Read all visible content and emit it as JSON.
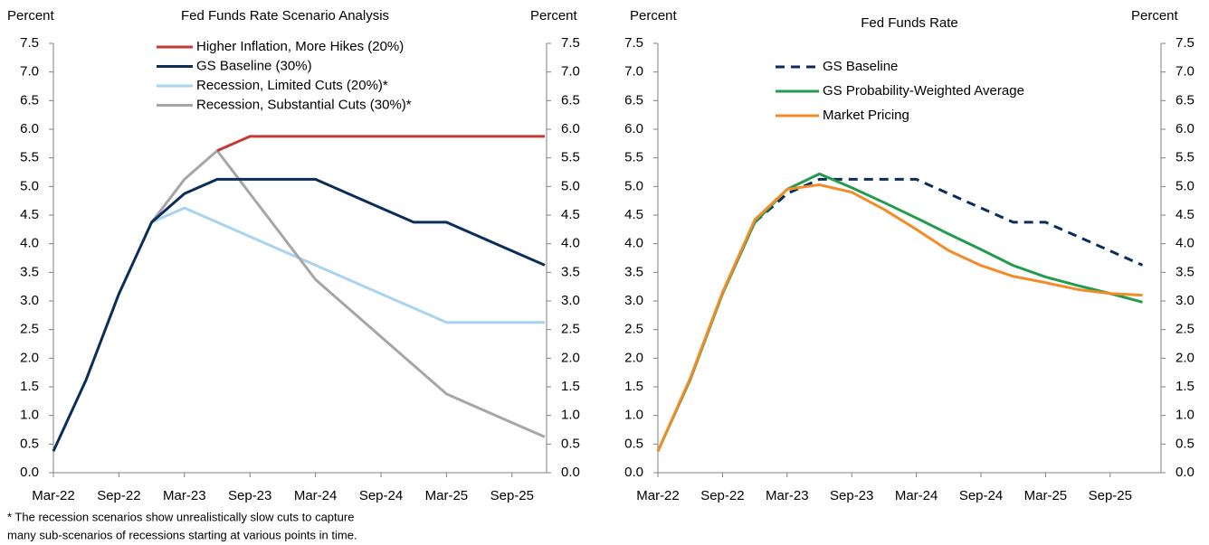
{
  "chart_data": [
    {
      "type": "line",
      "title": "Fed Funds Rate Scenario Analysis",
      "ylabel": "Percent",
      "y2label": "Percent",
      "categories": [
        "Mar-22",
        null,
        "Sep-22",
        null,
        "Mar-23",
        null,
        "Sep-23",
        null,
        "Mar-24",
        null,
        "Sep-24",
        null,
        "Mar-25",
        null,
        "Sep-25",
        null
      ],
      "series": [
        {
          "name": "Recession, Limited Cuts (20%)*",
          "color": "#a9d3ef",
          "values": [
            null,
            null,
            null,
            4.375,
            4.625,
            4.375,
            4.125,
            3.875,
            3.625,
            3.375,
            3.125,
            2.875,
            2.625,
            2.625,
            2.625,
            2.625
          ]
        },
        {
          "name": "Recession, Substantial Cuts (30%)*",
          "color": "#a6a6a6",
          "values": [
            null,
            null,
            null,
            4.375,
            5.125,
            5.625,
            4.875,
            4.125,
            3.375,
            2.875,
            2.375,
            1.875,
            1.375,
            1.125,
            0.875,
            0.625
          ]
        },
        {
          "name": "Higher Inflation, More Hikes (20%)",
          "color": "#c43b35",
          "values": [
            null,
            null,
            null,
            null,
            null,
            5.625,
            5.875,
            5.875,
            5.875,
            5.875,
            5.875,
            5.875,
            5.875,
            5.875,
            5.875,
            5.875
          ]
        },
        {
          "name": "GS Baseline (30%)",
          "color": "#0b2e59",
          "values": [
            0.375,
            1.625,
            3.125,
            4.375,
            4.875,
            5.125,
            5.125,
            5.125,
            5.125,
            4.875,
            4.625,
            4.375,
            4.375,
            4.125,
            3.875,
            3.625
          ]
        }
      ],
      "legend_order": [
        2,
        3,
        0,
        1
      ],
      "ylim": [
        0,
        7.5
      ],
      "yticks": [
        {
          "value": 0,
          "label": "0.0"
        },
        0.5,
        {
          "value": 1,
          "label": "1.0"
        },
        1.5,
        {
          "value": 2,
          "label": "2.0"
        },
        2.5,
        {
          "value": 3,
          "label": "3.0"
        },
        3.5,
        {
          "value": 4,
          "label": "4.0"
        },
        4.5,
        {
          "value": 5,
          "label": "5.0"
        },
        5.5,
        {
          "value": 6,
          "label": "6.0"
        },
        6.5,
        {
          "value": 7,
          "label": "7.0"
        },
        7.5
      ],
      "y2lim": [
        0,
        7.5
      ],
      "y2ticks": [
        {
          "value": 0,
          "label": "0.0"
        },
        0.5,
        {
          "value": 1,
          "label": "1.0"
        },
        1.5,
        {
          "value": 2,
          "label": "2.0"
        },
        2.5,
        {
          "value": 3,
          "label": "3.0"
        },
        3.5,
        {
          "value": 4,
          "label": "4.0"
        },
        4.5,
        {
          "value": 5,
          "label": "5.0"
        },
        5.5,
        {
          "value": 6,
          "label": "6.0"
        },
        6.5,
        {
          "value": 7,
          "label": "7.0"
        },
        7.5
      ],
      "footnote": [
        "* The recession scenarios show unrealistically slow cuts to capture",
        "many sub-scenarios of recessions starting at various points in time."
      ]
    },
    {
      "type": "line",
      "title": "Fed Funds Rate",
      "ylabel": "Percent",
      "y2label": "Percent",
      "categories": [
        "Mar-22",
        null,
        "Sep-22",
        null,
        "Mar-23",
        null,
        "Sep-23",
        null,
        "Mar-24",
        null,
        "Sep-24",
        null,
        "Mar-25",
        null,
        "Sep-25",
        null
      ],
      "series": [
        {
          "name": "GS Baseline",
          "color": "#0b2e59",
          "dashed": true,
          "values": [
            null,
            null,
            null,
            4.375,
            4.875,
            5.125,
            5.125,
            5.125,
            5.125,
            4.875,
            4.625,
            4.375,
            4.375,
            4.125,
            3.875,
            3.625
          ]
        },
        {
          "name": "GS Probability-Weighted Average",
          "color": "#239b4f",
          "values": [
            0.375,
            1.625,
            3.125,
            4.375,
            4.95,
            5.22,
            4.98,
            4.72,
            4.45,
            4.17,
            3.9,
            3.62,
            3.42,
            3.27,
            3.13,
            2.98
          ]
        },
        {
          "name": "Market Pricing",
          "color": "#f28c28",
          "values": [
            0.375,
            1.65,
            3.15,
            4.42,
            4.95,
            5.03,
            4.9,
            4.6,
            4.25,
            3.88,
            3.62,
            3.43,
            3.32,
            3.2,
            3.13,
            3.1
          ]
        }
      ],
      "legend_order": [
        0,
        1,
        2
      ],
      "ylim": [
        0,
        7.5
      ],
      "yticks": [
        {
          "value": 0,
          "label": "0.0"
        },
        0.5,
        {
          "value": 1,
          "label": "1.0"
        },
        1.5,
        {
          "value": 2,
          "label": "2.0"
        },
        2.5,
        {
          "value": 3,
          "label": "3.0"
        },
        3.5,
        {
          "value": 4,
          "label": "4.0"
        },
        4.5,
        {
          "value": 5,
          "label": "5.0"
        },
        5.5,
        {
          "value": 6,
          "label": "6.0"
        },
        6.5,
        {
          "value": 7,
          "label": "7.0"
        },
        7.5
      ],
      "y2lim": [
        0,
        7.5
      ],
      "y2ticks": [
        {
          "value": 0,
          "label": "0.0"
        },
        0.5,
        {
          "value": 1,
          "label": "1.0"
        },
        1.5,
        {
          "value": 2,
          "label": "2.0"
        },
        2.5,
        {
          "value": 3,
          "label": "3.0"
        },
        3.5,
        {
          "value": 4,
          "label": "4.0"
        },
        4.5,
        {
          "value": 5,
          "label": "5.0"
        },
        5.5,
        {
          "value": 6,
          "label": "6.0"
        },
        6.5,
        {
          "value": 7,
          "label": "7.0"
        },
        7.5
      ]
    }
  ]
}
